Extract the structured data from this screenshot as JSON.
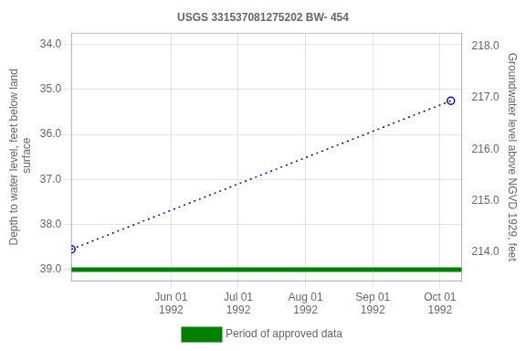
{
  "chart_data": {
    "type": "line",
    "title": "USGS 331537081275202 BW- 454",
    "ylabel": "Depth to water level, feet below land\n surface",
    "y2label": "Groundwater level above NGVD 1929, feet",
    "xlim": [
      -15,
      165
    ],
    "xticks": [
      {
        "value": 31,
        "label": "Jun 01\n1992"
      },
      {
        "value": 62,
        "label": "Jul 01\n1992"
      },
      {
        "value": 93,
        "label": "Aug 01\n1992"
      },
      {
        "value": 124,
        "label": "Sep 01\n1992"
      },
      {
        "value": 155,
        "label": "Oct 01\n1992"
      }
    ],
    "ylim": [
      39.25,
      33.75
    ],
    "yticks": [
      {
        "value": 34.0,
        "label": "34.0"
      },
      {
        "value": 35.0,
        "label": "35.0"
      },
      {
        "value": 36.0,
        "label": "36.0"
      },
      {
        "value": 37.0,
        "label": "37.0"
      },
      {
        "value": 38.0,
        "label": "38.0"
      },
      {
        "value": 39.0,
        "label": "39.0"
      }
    ],
    "y2lim": [
      213.45,
      218.25
    ],
    "y2ticks": [
      {
        "value": 214.0,
        "label": "214.0"
      },
      {
        "value": 215.0,
        "label": "215.0"
      },
      {
        "value": 216.0,
        "label": "216.0"
      },
      {
        "value": 217.0,
        "label": "217.0"
      },
      {
        "value": 218.0,
        "label": "218.0"
      }
    ],
    "grid": true,
    "legend": "bottom",
    "series": [
      {
        "x": [
          -15,
          160
        ],
        "values": [
          38.55,
          35.25
        ],
        "color": "#0000cc",
        "line_style": "dotted",
        "marker": "circle"
      },
      {
        "name": "Period of approved data",
        "x": [
          -15,
          165
        ],
        "values": [
          39.0,
          39.0
        ],
        "color": "#008000",
        "line_style": "solid"
      }
    ]
  }
}
